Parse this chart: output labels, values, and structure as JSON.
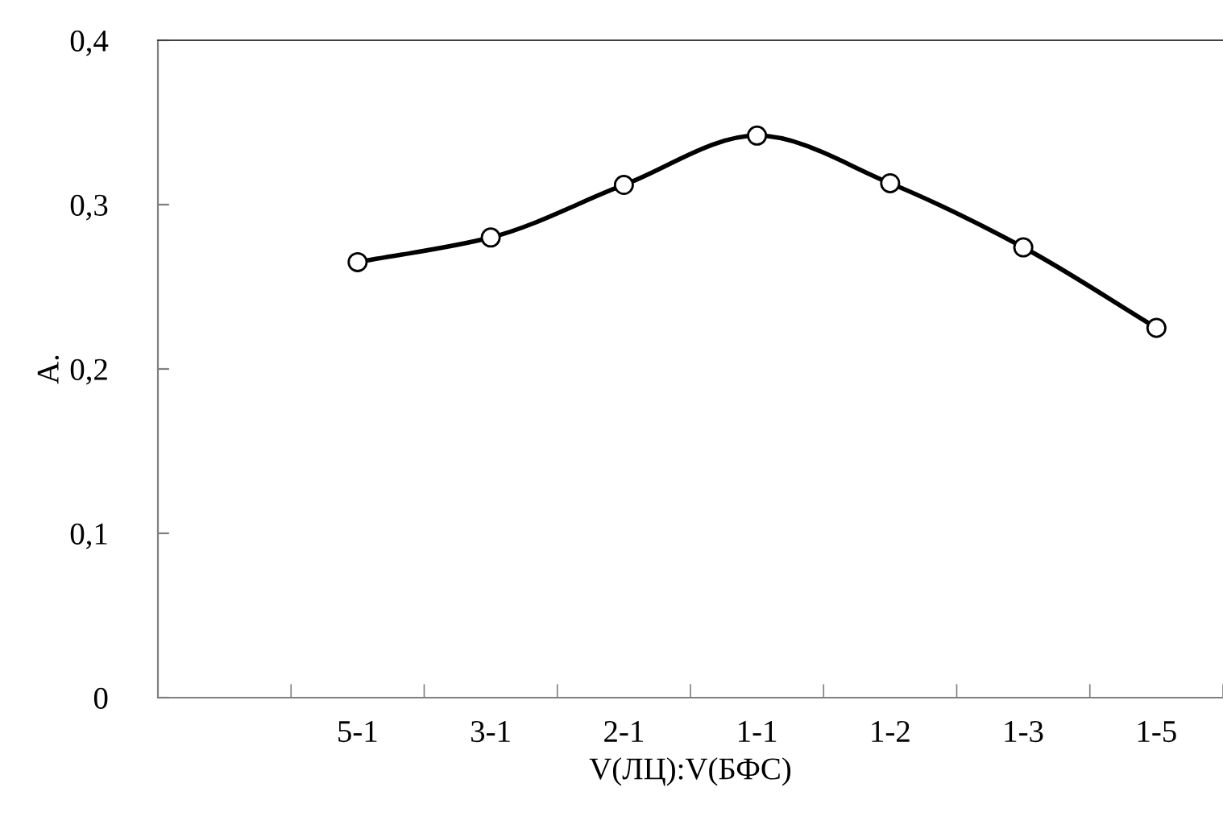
{
  "chart_data": {
    "type": "line",
    "xlabel": "V(ЛЦ):V(БФС)",
    "ylabel": "A.",
    "categories": [
      null,
      "5-1",
      "3-1",
      "2-1",
      "1-1",
      "1-2",
      "1-3",
      "1-5"
    ],
    "series": [
      {
        "color": "#000000",
        "values": [
          null,
          0.265,
          0.28,
          0.312,
          0.342,
          0.313,
          0.274,
          0.225
        ]
      }
    ],
    "ylim": [
      0,
      0.4
    ],
    "yticks": [
      0,
      {
        "value": 0.1,
        "label": "0,1"
      },
      {
        "value": 0.2,
        "label": "0,2"
      },
      {
        "value": 0.3,
        "label": "0,3"
      },
      {
        "value": 0.4,
        "label": "0,4"
      }
    ],
    "grid": false,
    "legend": false,
    "marker": "circle",
    "line_style": "solid"
  }
}
